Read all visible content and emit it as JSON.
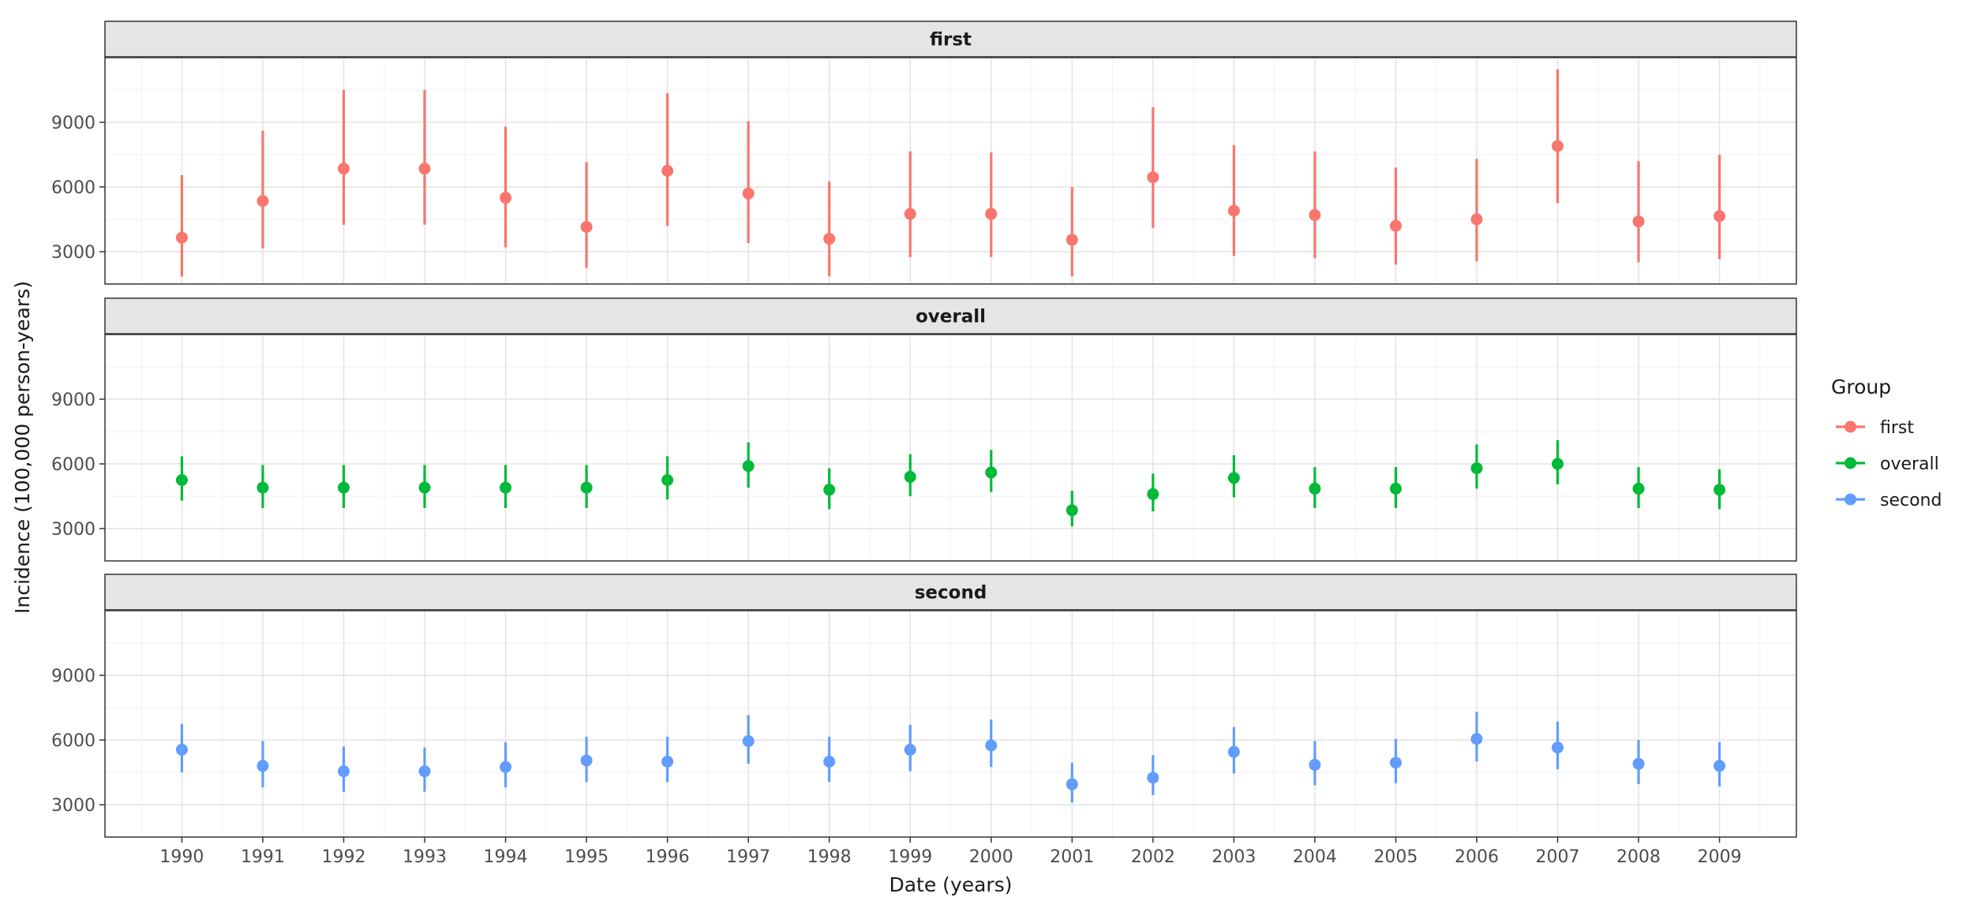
{
  "chart_data": {
    "type": "scatter",
    "subtype": "point-range (point estimate with interval), faceted",
    "xlabel": "Date (years)",
    "ylabel": "Incidence (100,000 person-years)",
    "x": [
      1990,
      1991,
      1992,
      1993,
      1994,
      1995,
      1996,
      1997,
      1998,
      1999,
      2000,
      2001,
      2002,
      2003,
      2004,
      2005,
      2006,
      2007,
      2008,
      2009
    ],
    "x_tick_labels": [
      "1990",
      "1991",
      "1992",
      "1993",
      "1994",
      "1995",
      "1996",
      "1997",
      "1998",
      "1999",
      "2000",
      "2001",
      "2002",
      "2003",
      "2004",
      "2005",
      "2006",
      "2007",
      "2008",
      "2009"
    ],
    "xlim": [
      1989.05,
      2009.95
    ],
    "ylim": [
      1500,
      12000
    ],
    "y_ticks": [
      3000,
      6000,
      9000
    ],
    "y_tick_labels": [
      "3000",
      "6000",
      "9000"
    ],
    "grid": true,
    "legend": {
      "title": "Group",
      "placement": "right",
      "entries": [
        "first",
        "overall",
        "second"
      ]
    },
    "colors": {
      "first": "#F8766D",
      "overall": "#00BA38",
      "second": "#619CFF",
      "panel_border": "#333333",
      "strip_bg": "#E5E5E5",
      "grid_major": "#E3E3E3",
      "grid_minor": "#F2F2F2",
      "text": "#1A1A1A",
      "tick_text": "#4D4D4D"
    },
    "facets": [
      {
        "name": "first",
        "color": "#F8766D",
        "y": [
          3650,
          5350,
          6850,
          6850,
          5500,
          4150,
          6750,
          5700,
          3600,
          4750,
          4750,
          3550,
          6450,
          4900,
          4700,
          4200,
          4500,
          7900,
          4400,
          4650
        ],
        "lower": [
          1850,
          3150,
          4250,
          4250,
          3200,
          2250,
          4200,
          3400,
          1850,
          2750,
          2750,
          1850,
          4100,
          2800,
          2700,
          2400,
          2550,
          5250,
          2500,
          2650
        ],
        "upper": [
          6550,
          8600,
          10500,
          10500,
          8800,
          7150,
          10350,
          9050,
          6250,
          7650,
          7600,
          6000,
          9700,
          7950,
          7650,
          6900,
          7300,
          11450,
          7200,
          7500
        ]
      },
      {
        "name": "overall",
        "color": "#00BA38",
        "y": [
          5250,
          4900,
          4900,
          4900,
          4900,
          4900,
          5250,
          5900,
          4800,
          5400,
          5600,
          3850,
          4600,
          5350,
          4850,
          4850,
          5800,
          6000,
          4850,
          4800
        ],
        "lower": [
          4300,
          3950,
          3950,
          3950,
          3950,
          3950,
          4350,
          4900,
          3900,
          4500,
          4700,
          3100,
          3800,
          4450,
          3950,
          3950,
          4850,
          5050,
          3950,
          3900
        ],
        "upper": [
          6350,
          5950,
          5950,
          5950,
          5950,
          5950,
          6350,
          7000,
          5800,
          6450,
          6650,
          4750,
          5550,
          6400,
          5850,
          5850,
          6900,
          7100,
          5850,
          5750
        ]
      },
      {
        "name": "second",
        "color": "#619CFF",
        "y": [
          5550,
          4800,
          4550,
          4550,
          4750,
          5050,
          5000,
          5950,
          5000,
          5550,
          5750,
          3950,
          4250,
          5450,
          4850,
          4950,
          6050,
          5650,
          4900,
          4800
        ],
        "lower": [
          4500,
          3800,
          3600,
          3600,
          3800,
          4050,
          4050,
          4900,
          4050,
          4550,
          4750,
          3100,
          3450,
          4450,
          3900,
          4000,
          5000,
          4650,
          3950,
          3850
        ],
        "upper": [
          6750,
          5950,
          5700,
          5650,
          5900,
          6150,
          6150,
          7150,
          6150,
          6700,
          6950,
          4950,
          5300,
          6600,
          5950,
          6050,
          7300,
          6850,
          6000,
          5900
        ]
      }
    ]
  }
}
